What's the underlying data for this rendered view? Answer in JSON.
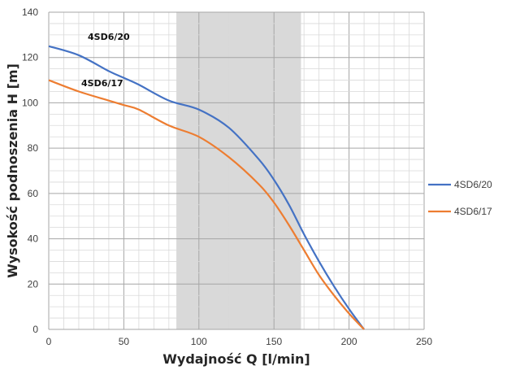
{
  "chart_data": {
    "type": "line",
    "title": "",
    "xlabel": "Wydajność Q [l/min]",
    "ylabel": "Wysokość podnoszenia H [m]",
    "xlim": [
      0,
      250
    ],
    "ylim": [
      0,
      140
    ],
    "xticks": [
      0,
      50,
      100,
      150,
      200,
      250
    ],
    "yticks": [
      0,
      20,
      40,
      60,
      80,
      100,
      120,
      140
    ],
    "grid": true,
    "legend_position": "right",
    "shaded_region_x": [
      85,
      168
    ],
    "shaded_color": "#d9d9d9",
    "series": [
      {
        "name": "4SD6/20",
        "color": "#4472c4",
        "x": [
          0,
          20,
          40,
          50,
          60,
          80,
          100,
          120,
          140,
          150,
          160,
          170,
          180,
          190,
          200,
          210
        ],
        "y": [
          125,
          121,
          114,
          111,
          108,
          101,
          97,
          89,
          75,
          66,
          55,
          42,
          30,
          19,
          9,
          0
        ]
      },
      {
        "name": "4SD6/17",
        "color": "#ed7d31",
        "x": [
          0,
          20,
          40,
          50,
          60,
          80,
          100,
          120,
          140,
          150,
          160,
          170,
          180,
          190,
          200,
          210
        ],
        "y": [
          110,
          105,
          101,
          99,
          97,
          90,
          85,
          76,
          64,
          56,
          46,
          35,
          24,
          15,
          7,
          0
        ]
      }
    ],
    "annotations": [
      "4SD6/20",
      "4SD6/17"
    ]
  }
}
